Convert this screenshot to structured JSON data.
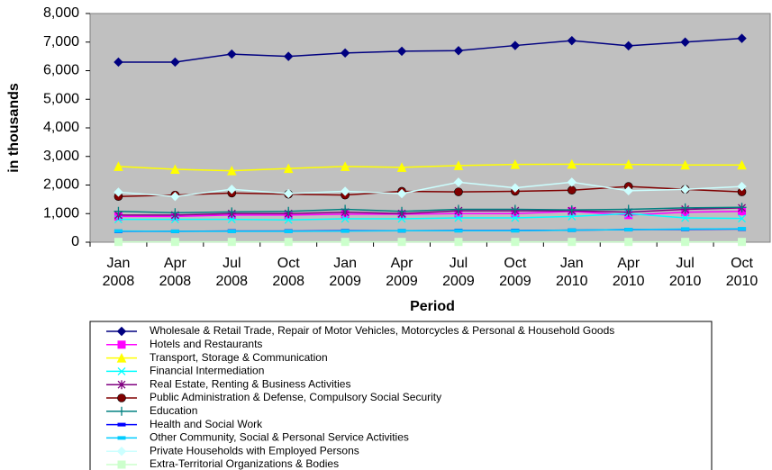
{
  "chart_data": {
    "type": "line",
    "y_label": "in thousands",
    "x_label": "Period",
    "categories": [
      "Jan 2008",
      "Apr 2008",
      "Jul 2008",
      "Oct 2008",
      "Jan 2009",
      "Apr 2009",
      "Jul 2009",
      "Oct 2009",
      "Jan 2010",
      "Apr 2010",
      "Jul 2010",
      "Oct 2010"
    ],
    "ylim": [
      0,
      8000
    ],
    "yticks": [
      0,
      {
        "value": 1000,
        "label": "1,000"
      },
      {
        "value": 2000,
        "label": "2,000"
      },
      {
        "value": 3000,
        "label": "3,000"
      },
      {
        "value": 4000,
        "label": "4,000"
      },
      {
        "value": 5000,
        "label": "5,000"
      },
      {
        "value": 6000,
        "label": "6,000"
      },
      {
        "value": 7000,
        "label": "7,000"
      },
      {
        "value": 8000,
        "label": "8,000"
      }
    ],
    "grid": false,
    "legend": "bottom",
    "series": [
      {
        "name": "Wholesale & Retail Trade, Repair of Motor Vehicles, Motorcycles & Personal & Household Goods",
        "color": "#000080",
        "marker": "diamond",
        "values": [
          6300,
          6300,
          6580,
          6500,
          6620,
          6680,
          6700,
          6880,
          7050,
          6870,
          7000,
          7130
        ]
      },
      {
        "name": "Hotels and Restaurants",
        "color": "#ff00ff",
        "marker": "square",
        "values": [
          900,
          900,
          950,
          950,
          980,
          980,
          1000,
          1000,
          1080,
          950,
          1050,
          1080
        ]
      },
      {
        "name": "Transport, Storage & Communication",
        "color": "#ffff00",
        "marker": "triangle",
        "values": [
          2650,
          2550,
          2500,
          2580,
          2650,
          2620,
          2680,
          2720,
          2730,
          2720,
          2700,
          2700
        ]
      },
      {
        "name": "Financial Intermediation",
        "color": "#00ffff",
        "marker": "x",
        "values": [
          800,
          800,
          800,
          780,
          820,
          820,
          850,
          850,
          900,
          1000,
          850,
          830
        ]
      },
      {
        "name": "Real Estate, Renting & Business Activities",
        "color": "#800080",
        "marker": "star",
        "values": [
          950,
          950,
          1000,
          1000,
          1050,
          1000,
          1100,
          1100,
          1100,
          1050,
          1150,
          1200
        ]
      },
      {
        "name": "Public Administration & Defense, Compulsory Social Security",
        "color": "#800000",
        "marker": "circle",
        "values": [
          1600,
          1650,
          1720,
          1680,
          1650,
          1780,
          1760,
          1780,
          1820,
          1950,
          1850,
          1760
        ]
      },
      {
        "name": "Education",
        "color": "#008080",
        "marker": "plus",
        "values": [
          1080,
          1030,
          1060,
          1080,
          1150,
          1080,
          1150,
          1150,
          1130,
          1150,
          1200,
          1220
        ]
      },
      {
        "name": "Health and Social Work",
        "color": "#0000ff",
        "marker": "dash",
        "values": [
          380,
          380,
          390,
          390,
          400,
          400,
          410,
          410,
          420,
          440,
          450,
          460
        ]
      },
      {
        "name": "Other Community, Social & Personal Service Activities",
        "color": "#00ccff",
        "marker": "dash",
        "values": [
          390,
          380,
          380,
          380,
          390,
          400,
          400,
          400,
          420,
          440,
          460,
          470
        ]
      },
      {
        "name": "Private Households with Employed Persons",
        "color": "#ccffff",
        "marker": "diamond",
        "values": [
          1750,
          1600,
          1850,
          1700,
          1780,
          1700,
          2100,
          1900,
          2100,
          1800,
          1850,
          1950
        ]
      },
      {
        "name": "Extra-Territorial Organizations & Bodies",
        "color": "#ccffcc",
        "marker": "square",
        "values": [
          10,
          10,
          10,
          10,
          10,
          10,
          10,
          10,
          10,
          10,
          10,
          10
        ]
      }
    ]
  }
}
